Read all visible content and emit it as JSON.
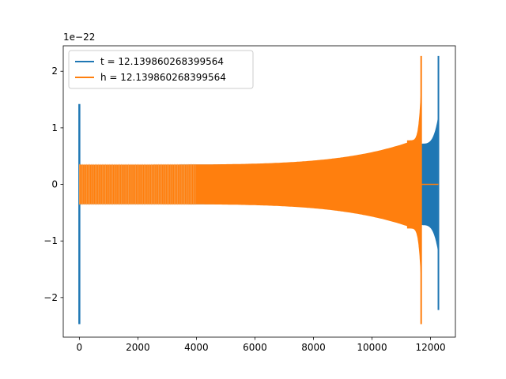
{
  "chart_data": {
    "type": "line",
    "title": "",
    "xlabel": "",
    "ylabel": "",
    "y_offset_text": "1e−22",
    "xlim": [
      -550,
      12850
    ],
    "ylim": [
      -2.7,
      2.45
    ],
    "x_ticks": [
      0,
      2000,
      4000,
      6000,
      8000,
      10000,
      12000
    ],
    "x_tick_labels": [
      "0",
      "2000",
      "4000",
      "6000",
      "8000",
      "10000",
      "12000"
    ],
    "y_ticks": [
      -2,
      -1,
      0,
      1,
      2
    ],
    "y_tick_labels": [
      "−2",
      "−1",
      "0",
      "1",
      "2"
    ],
    "grid": false,
    "legend_position": "upper-left",
    "series": [
      {
        "name": "t = 12.139860268399564",
        "color": "#1f77b4",
        "description_points": {
          "start_spike_x": 0,
          "start_spike_max": 1.42,
          "start_spike_min": -2.47,
          "x_start": 0,
          "x_end": 12270,
          "envelope_start": 0.35,
          "envelope_at_11700": 0.72,
          "final_spike_x": 12270,
          "final_spike_max": 2.27,
          "final_spike_min": -2.22
        }
      },
      {
        "name": "h = 12.139860268399564",
        "color": "#ff7f0e",
        "description_points": {
          "x_start": 0,
          "x_end": 11680,
          "envelope_start": 0.35,
          "envelope_at_10000": 0.55,
          "final_spike_x": 11680,
          "final_spike_max": 2.27,
          "final_spike_min": -2.47,
          "tail_x_end": 12270,
          "tail_value": 0.0
        }
      }
    ]
  }
}
